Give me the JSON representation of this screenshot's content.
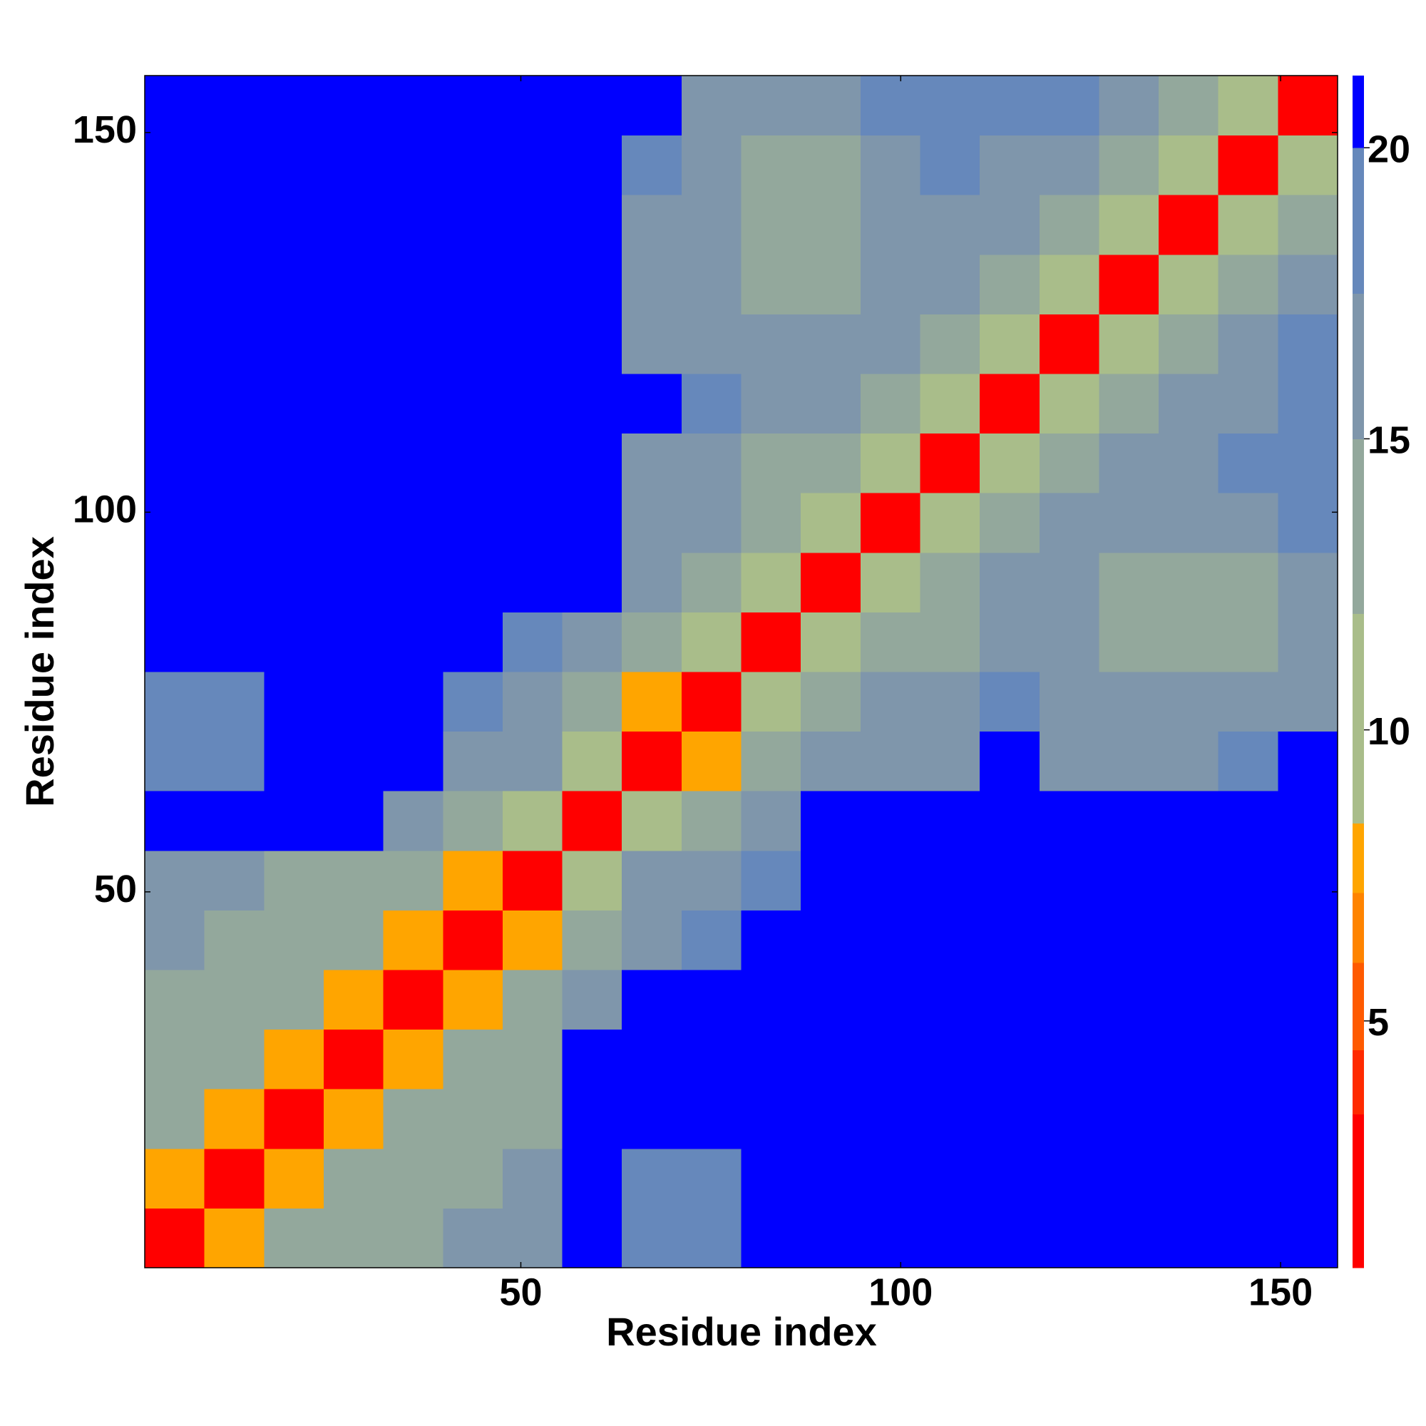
{
  "chart_data": {
    "type": "heatmap",
    "xlabel": "Residue index",
    "ylabel": "Residue index",
    "x_bins": [
      0.5,
      8.35,
      16.2,
      24.05,
      31.9,
      39.75,
      47.6,
      55.45,
      63.3,
      71.15,
      79,
      86.85,
      94.7,
      102.55,
      110.4,
      118.25,
      126.1,
      133.95,
      141.8,
      149.65,
      157.5
    ],
    "y_bins": [
      0.5,
      8.35,
      16.2,
      24.05,
      31.9,
      39.75,
      47.6,
      55.45,
      63.3,
      71.15,
      79,
      86.85,
      94.7,
      102.55,
      110.4,
      118.25,
      126.1,
      133.95,
      141.8,
      149.65,
      157.5
    ],
    "xlim": [
      0.5,
      157.5
    ],
    "ylim": [
      0.5,
      157.5
    ],
    "xticks": [
      50,
      100,
      150
    ],
    "yticks": [
      50,
      100,
      150
    ],
    "zlim": [
      0.76,
      21.24
    ],
    "zticks": [
      5,
      10,
      15,
      20
    ],
    "cmap": [
      [
        0.76,
        "#ff0000"
      ],
      [
        3.4,
        "#ff2a00"
      ],
      [
        4.5,
        "#ff5a00"
      ],
      [
        6,
        "#ff8400"
      ],
      [
        7.2,
        "#ffa500"
      ],
      [
        8.4,
        "#a9bd8a"
      ],
      [
        12,
        "#93a89c"
      ],
      [
        15,
        "#7f96ab"
      ],
      [
        17.5,
        "#6688bb"
      ],
      [
        20,
        "#0000ff"
      ]
    ],
    "z": [
      [
        3,
        8,
        12,
        14,
        14,
        15,
        15,
        21,
        18,
        19,
        20,
        21,
        21,
        21,
        21,
        21,
        21,
        21,
        21,
        21
      ],
      [
        8,
        3,
        8,
        12,
        14,
        14,
        16,
        21,
        18,
        18,
        21,
        21,
        21,
        21,
        21,
        21,
        21,
        21,
        21,
        21
      ],
      [
        12,
        8,
        3,
        8,
        12,
        14,
        14,
        21,
        21,
        21,
        21,
        21,
        21,
        21,
        21,
        21,
        21,
        21,
        21,
        21
      ],
      [
        14,
        12,
        8,
        3,
        8,
        12,
        14,
        21,
        21,
        21,
        21,
        21,
        21,
        21,
        21,
        21,
        21,
        21,
        21,
        21
      ],
      [
        14,
        14,
        12,
        8,
        3,
        8,
        12,
        17,
        21,
        21,
        21,
        21,
        21,
        21,
        21,
        21,
        21,
        21,
        21,
        21
      ],
      [
        15,
        14,
        14,
        12,
        8,
        3,
        8,
        14,
        17,
        18,
        21,
        21,
        21,
        21,
        21,
        21,
        21,
        21,
        21,
        21
      ],
      [
        15,
        16,
        14,
        14,
        12,
        8,
        3,
        10,
        16,
        17,
        19,
        21,
        21,
        21,
        21,
        21,
        21,
        21,
        21,
        21
      ],
      [
        21,
        21,
        21,
        21,
        17,
        14,
        10,
        3,
        10,
        12,
        16,
        21,
        21,
        21,
        21,
        21,
        21,
        21,
        21,
        21
      ],
      [
        18,
        18,
        21,
        21,
        21,
        17,
        16,
        10,
        3,
        8,
        12,
        17,
        17,
        16,
        21,
        17,
        17,
        17,
        18,
        20
      ],
      [
        19,
        18,
        21,
        21,
        21,
        18,
        17,
        12,
        8,
        3,
        10,
        14,
        15,
        15,
        19,
        16,
        15,
        15,
        16,
        17
      ],
      [
        20,
        21,
        21,
        21,
        21,
        21,
        19,
        16,
        12,
        10,
        3,
        10,
        13,
        14,
        17,
        15,
        14,
        13,
        14,
        15
      ],
      [
        21,
        21,
        21,
        21,
        21,
        21,
        21,
        21,
        17,
        14,
        10,
        3,
        10,
        13,
        15,
        16,
        14,
        14,
        14,
        16
      ],
      [
        21,
        21,
        21,
        21,
        21,
        21,
        21,
        21,
        17,
        15,
        13,
        10,
        3,
        10,
        13,
        15,
        15,
        16,
        16,
        18
      ],
      [
        21,
        21,
        21,
        21,
        21,
        21,
        21,
        21,
        16,
        15,
        14,
        13,
        10,
        3,
        10,
        14,
        16,
        17,
        18,
        19
      ],
      [
        21,
        21,
        21,
        21,
        21,
        21,
        21,
        21,
        21,
        19,
        17,
        15,
        13,
        10,
        3,
        10,
        14,
        15,
        17,
        19
      ],
      [
        21,
        21,
        21,
        21,
        21,
        21,
        21,
        21,
        17,
        16,
        15,
        16,
        15,
        14,
        10,
        3,
        10,
        13,
        15,
        18
      ],
      [
        21,
        21,
        21,
        21,
        21,
        21,
        21,
        21,
        17,
        15,
        14,
        14,
        15,
        16,
        14,
        10,
        3,
        10,
        13,
        16
      ],
      [
        21,
        21,
        21,
        21,
        21,
        21,
        21,
        21,
        17,
        15,
        13,
        14,
        16,
        17,
        15,
        13,
        10,
        3,
        10,
        13
      ],
      [
        21,
        21,
        21,
        21,
        21,
        21,
        21,
        21,
        18,
        16,
        14,
        14,
        16,
        18,
        17,
        15,
        13,
        10,
        3,
        10
      ],
      [
        21,
        21,
        21,
        21,
        21,
        21,
        21,
        21,
        20,
        17,
        15,
        16,
        18,
        19,
        19,
        18,
        16,
        13,
        10,
        3
      ]
    ]
  }
}
